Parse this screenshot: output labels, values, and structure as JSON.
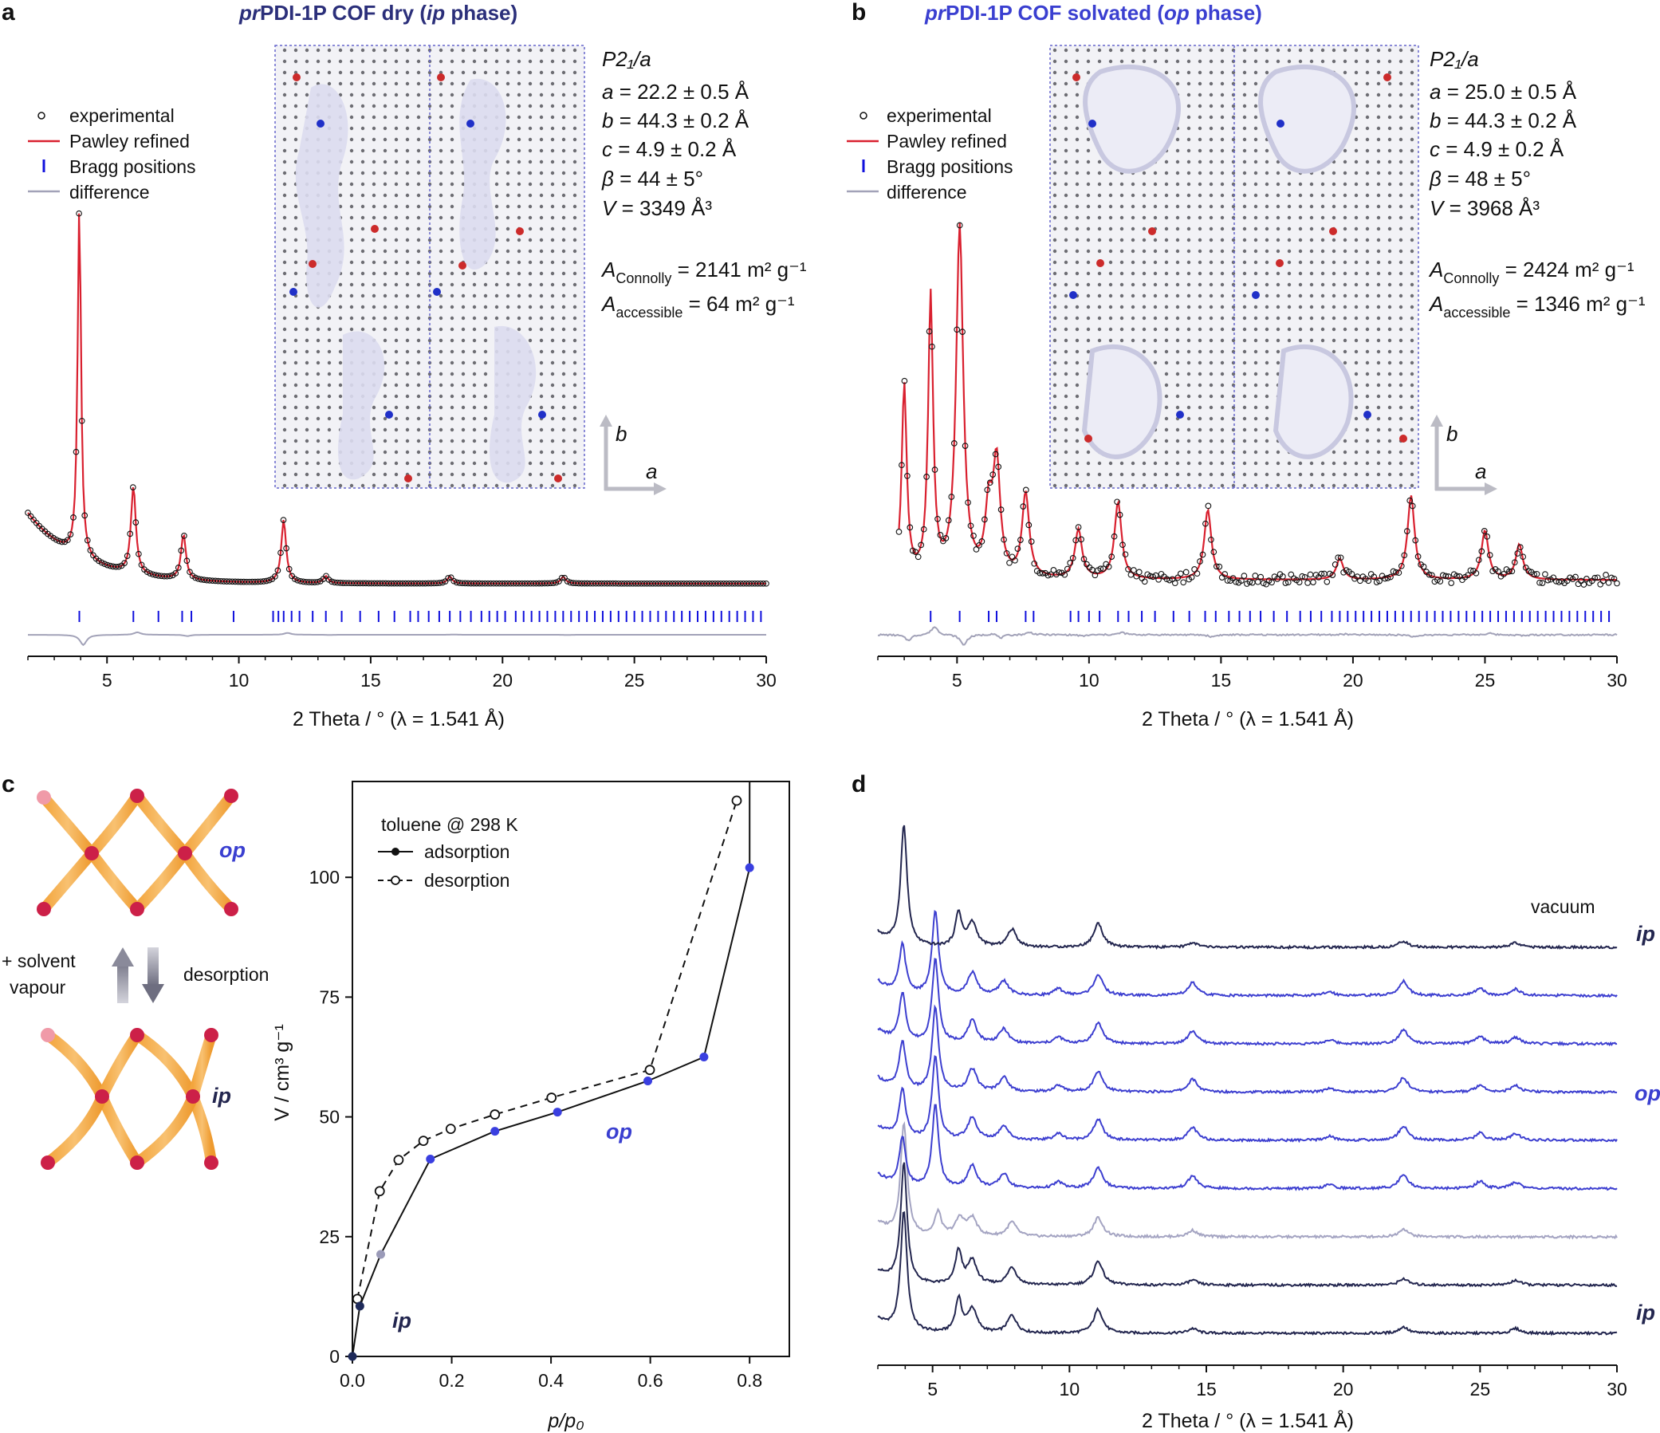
{
  "panels": {
    "a": {
      "label": "a",
      "title_prefix": "pr",
      "title_main": "PDI-1P COF dry (",
      "title_phase": "ip",
      "title_end": " phase)",
      "legend": [
        "experimental",
        "Pawley refined",
        "Bragg positions",
        "difference"
      ],
      "cell": {
        "space_group": "P2₁/a",
        "a": "= 22.2 ± 0.5 Å",
        "b": "= 44.3 ± 0.2 Å",
        "c": "= 4.9 ± 0.2 Å",
        "beta": "= 44 ± 5°",
        "V": "= 3349 Å³",
        "A_connolly": "= 2141 m² g⁻¹",
        "A_accessible": "= 64 m² g⁻¹"
      },
      "axis_b": "b",
      "axis_a": "a",
      "xlabel": "2 Theta / ° (λ = 1.541 Å)"
    },
    "b": {
      "label": "b",
      "title_prefix": "pr",
      "title_main": "PDI-1P COF solvated (",
      "title_phase": "op",
      "title_end": " phase)",
      "legend": [
        "experimental",
        "Pawley refined",
        "Bragg positions",
        "difference"
      ],
      "cell": {
        "space_group": "P2₁/a",
        "a": "= 25.0 ± 0.5 Å",
        "b": "= 44.3 ± 0.2 Å",
        "c": "= 4.9 ± 0.2 Å",
        "beta": "= 48 ± 5°",
        "V": "= 3968 Å³",
        "A_connolly": "= 2424 m² g⁻¹",
        "A_accessible": "= 1346 m² g⁻¹"
      },
      "axis_b": "b",
      "axis_a": "a",
      "xlabel": "2 Theta / ° (λ = 1.541 Å)"
    },
    "c": {
      "label": "c",
      "op_label": "op",
      "ip_label": "ip",
      "solvent_label_1": "+ solvent",
      "solvent_label_2": "vapour",
      "desorption_label": "desorption",
      "legend_title": "toluene @ 298 K",
      "legend": [
        "adsorption",
        "desorption"
      ],
      "plot_ip": "ip",
      "plot_op": "op",
      "ylabel": "V / cm³ g⁻¹",
      "xlabel": "p/p₀"
    },
    "d": {
      "label": "d",
      "vacuum_label": "vacuum",
      "phase_labels": [
        "ip",
        "op",
        "ip"
      ],
      "xlabel": "2 Theta / ° (λ = 1.541 Å)"
    }
  },
  "chart_data": [
    {
      "type": "scatter",
      "panel": "a",
      "xlim": [
        2,
        30
      ],
      "xticks": [
        5,
        10,
        15,
        20,
        25,
        30
      ],
      "peaks": [
        [
          3.95,
          1.0
        ],
        [
          6.0,
          0.25
        ],
        [
          7.9,
          0.13
        ],
        [
          11.7,
          0.18
        ],
        [
          13.3,
          0.02
        ],
        [
          18.0,
          0.02
        ],
        [
          22.3,
          0.02
        ]
      ],
      "bragg": [
        3.95,
        6.0,
        6.95,
        7.85,
        8.2,
        9.8,
        11.3,
        11.5,
        11.7,
        12.0,
        12.3,
        12.8,
        13.3,
        13.9,
        14.6,
        15.3,
        15.9,
        16.5,
        16.8,
        17.2,
        17.6,
        18.0,
        18.4,
        18.8,
        19.2,
        19.5,
        19.8,
        20.1,
        20.5,
        20.8,
        21.1,
        21.4,
        21.7,
        22.0,
        22.3,
        22.6,
        22.9,
        23.2,
        23.5,
        23.8,
        24.1,
        24.4,
        24.7,
        25.0,
        25.3,
        25.6,
        25.9,
        26.2,
        26.5,
        26.8,
        27.1,
        27.4,
        27.7,
        28.0,
        28.3,
        28.6,
        28.9,
        29.2,
        29.5,
        29.8
      ],
      "series": [
        {
          "name": "experimental"
        },
        {
          "name": "Pawley refined"
        },
        {
          "name": "Bragg positions"
        },
        {
          "name": "difference"
        }
      ]
    },
    {
      "type": "scatter",
      "panel": "b",
      "xlim": [
        2,
        30
      ],
      "xticks": [
        5,
        10,
        15,
        20,
        25,
        30
      ],
      "peaks": [
        [
          3.0,
          0.55
        ],
        [
          4.0,
          0.8
        ],
        [
          5.1,
          1.0
        ],
        [
          6.2,
          0.18
        ],
        [
          6.5,
          0.32
        ],
        [
          7.6,
          0.24
        ],
        [
          9.6,
          0.14
        ],
        [
          11.1,
          0.22
        ],
        [
          14.5,
          0.2
        ],
        [
          19.5,
          0.06
        ],
        [
          22.2,
          0.24
        ],
        [
          25.0,
          0.14
        ],
        [
          26.3,
          0.1
        ]
      ],
      "bragg": [
        4.0,
        5.1,
        6.2,
        6.5,
        7.6,
        7.9,
        9.3,
        9.6,
        10.0,
        10.4,
        11.1,
        11.5,
        12.0,
        12.5,
        13.2,
        13.8,
        14.4,
        14.8,
        15.3,
        15.7,
        16.1,
        16.5,
        17.0,
        17.5,
        18.0,
        18.4,
        18.8,
        19.2,
        19.5,
        19.8,
        20.1,
        20.4,
        20.7,
        21.0,
        21.3,
        21.6,
        21.9,
        22.2,
        22.5,
        22.8,
        23.1,
        23.4,
        23.7,
        24.0,
        24.3,
        24.6,
        24.9,
        25.2,
        25.5,
        25.8,
        26.1,
        26.4,
        26.7,
        27.0,
        27.3,
        27.6,
        27.9,
        28.2,
        28.5,
        28.8,
        29.1,
        29.4,
        29.7
      ],
      "series": [
        {
          "name": "experimental"
        },
        {
          "name": "Pawley refined"
        },
        {
          "name": "Bragg positions"
        },
        {
          "name": "difference"
        }
      ]
    },
    {
      "type": "line",
      "panel": "c",
      "xlim": [
        0,
        0.88
      ],
      "ylim": [
        0,
        120
      ],
      "xticks": [
        0.0,
        0.2,
        0.4,
        0.6,
        0.8
      ],
      "yticks": [
        0,
        25,
        50,
        75,
        100
      ],
      "series": [
        {
          "name": "adsorption",
          "x": [
            0.0,
            0.015,
            0.057,
            0.157,
            0.287,
            0.413,
            0.595,
            0.708,
            0.8,
            0.8
          ],
          "y": [
            0,
            10.5,
            21.3,
            41.2,
            47.0,
            51.0,
            57.5,
            62.5,
            102.0,
            122.0
          ],
          "point_colors": [
            "#1e2a5a",
            "#1e2a5a",
            "#9a9ab8",
            "#3a3fe0",
            "#3a3fe0",
            "#3a3fe0",
            "#3a3fe0",
            "#3a3fe0",
            "#3a3fe0"
          ]
        },
        {
          "name": "desorption",
          "x": [
            0.01,
            0.055,
            0.093,
            0.143,
            0.198,
            0.287,
            0.401,
            0.599,
            0.774
          ],
          "y": [
            12.0,
            34.5,
            41.0,
            45.0,
            47.5,
            50.5,
            54.0,
            59.8,
            116.0
          ]
        }
      ]
    },
    {
      "type": "line",
      "panel": "d",
      "xlim": [
        3,
        30
      ],
      "xticks": [
        5,
        10,
        15,
        20,
        25,
        30
      ],
      "traces_bottom_to_top": [
        {
          "phase": "ip",
          "color": "#23264f"
        },
        {
          "phase": "ip",
          "color": "#23264f"
        },
        {
          "phase": "mixed",
          "color": "#a4a4c2"
        },
        {
          "phase": "op",
          "color": "#3d3fd0"
        },
        {
          "phase": "op",
          "color": "#3d3fd0"
        },
        {
          "phase": "op",
          "color": "#3d3fd0"
        },
        {
          "phase": "op",
          "color": "#3d3fd0"
        },
        {
          "phase": "op",
          "color": "#3d3fd0"
        },
        {
          "phase": "ip",
          "color": "#23264f"
        }
      ]
    }
  ]
}
